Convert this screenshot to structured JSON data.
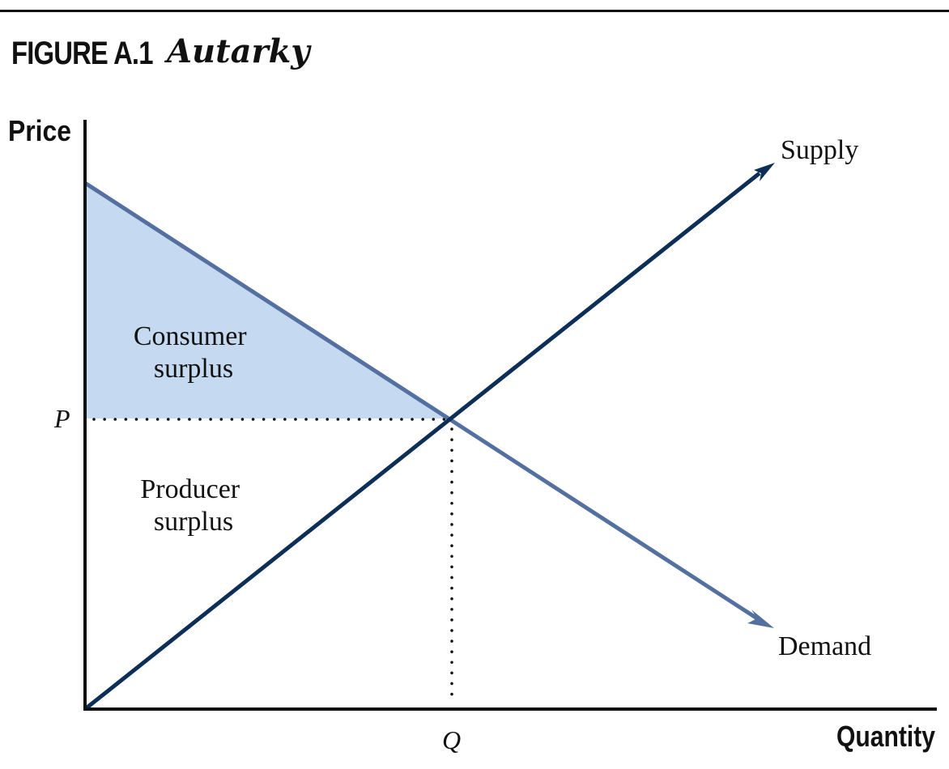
{
  "figure": {
    "label": "FIGURE A.1",
    "title": "Autarky"
  },
  "axes": {
    "y_label": "Price",
    "x_label": "Quantity",
    "price_tick": "P",
    "quantity_tick": "Q"
  },
  "curves": {
    "supply_label": "Supply",
    "demand_label": "Demand"
  },
  "regions": {
    "consumer_surplus": [
      "Consumer",
      "surplus"
    ],
    "producer_surplus": [
      "Producer",
      "surplus"
    ]
  },
  "colors": {
    "supply": "#0d2f57",
    "demand": "#5470a0",
    "consumer_surplus_fill": "#c5d9f0",
    "axis": "#111111"
  }
}
